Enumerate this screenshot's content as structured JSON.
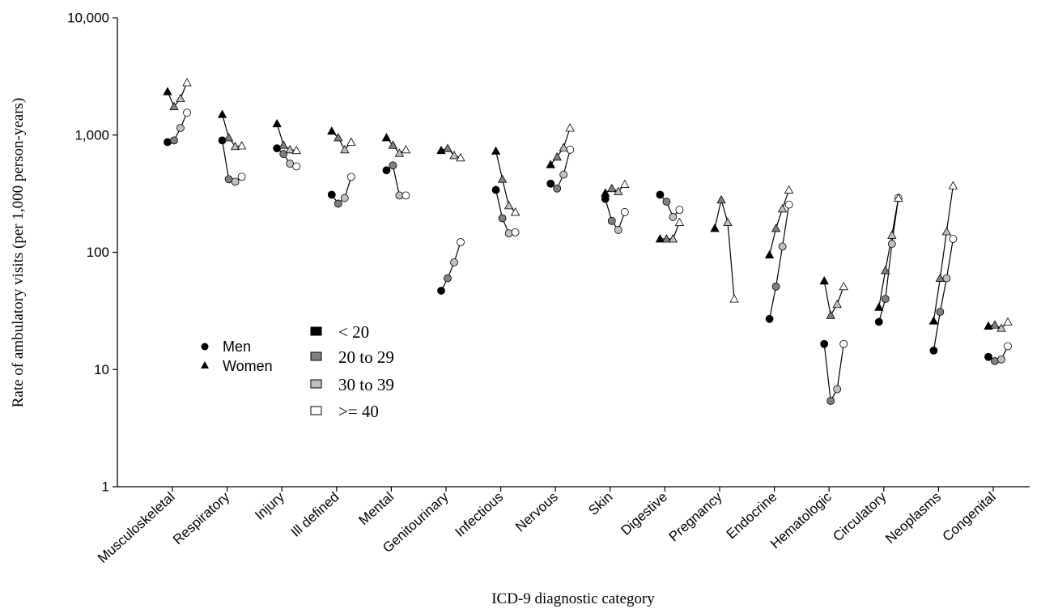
{
  "chart_data": {
    "type": "scatter",
    "title": "",
    "xlabel": "ICD-9 diagnostic category",
    "ylabel": "Rate of ambulatory visits (per 1,000 person-years)",
    "yscale": "log",
    "ylim": [
      1,
      10000
    ],
    "ytick_values": [
      1,
      10,
      100,
      1000,
      10000
    ],
    "ytick_labels": [
      "1",
      "10",
      "100",
      "1,000",
      "10,000"
    ],
    "grid": false,
    "categories": [
      "Musculoskeletal",
      "Respiratory",
      "Injury",
      "Ill defined",
      "Mental",
      "Genitourinary",
      "Infectious",
      "Nervous",
      "Skin",
      "Digestive",
      "Pregnancy",
      "Endocrine",
      "Hematologic",
      "Circulatory",
      "Neoplasms",
      "Congenital"
    ],
    "age_groups": [
      "< 20",
      "20 to 29",
      "30 to 39",
      ">= 40"
    ],
    "age_colors": [
      "#000000",
      "#808080",
      "#c0c0c0",
      "#ffffff"
    ],
    "legend_sex": [
      {
        "marker": "circle",
        "label": "Men"
      },
      {
        "marker": "triangle",
        "label": "Women"
      }
    ],
    "legend_age": [
      "< 20",
      "20 to 29",
      "30 to 39",
      ">= 40"
    ],
    "legend_position": "lower-left, inside plot",
    "series": [
      {
        "name": "Men",
        "marker": "circle",
        "values": [
          [
            870,
            900,
            1150,
            1550
          ],
          [
            900,
            420,
            400,
            440
          ],
          [
            770,
            690,
            570,
            540
          ],
          [
            310,
            260,
            290,
            440
          ],
          [
            500,
            550,
            305,
            305
          ],
          [
            47,
            60,
            82,
            122
          ],
          [
            340,
            195,
            145,
            148
          ],
          [
            385,
            350,
            460,
            750
          ],
          [
            285,
            185,
            155,
            220
          ],
          [
            310,
            270,
            200,
            230
          ],
          [
            null,
            null,
            null,
            null
          ],
          [
            27,
            51,
            112,
            255
          ],
          [
            16.5,
            5.4,
            6.8,
            16.5
          ],
          [
            25.5,
            40,
            118,
            290
          ],
          [
            14.5,
            31,
            60,
            130
          ],
          [
            12.8,
            11.8,
            12.2,
            15.8
          ]
        ]
      },
      {
        "name": "Women",
        "marker": "triangle",
        "values": [
          [
            2350,
            1750,
            2050,
            2800
          ],
          [
            1500,
            950,
            800,
            810
          ],
          [
            1250,
            820,
            750,
            740
          ],
          [
            1080,
            950,
            750,
            870
          ],
          [
            950,
            820,
            700,
            750
          ],
          [
            740,
            770,
            670,
            640
          ],
          [
            730,
            420,
            250,
            220
          ],
          [
            560,
            650,
            780,
            1150
          ],
          [
            320,
            350,
            330,
            380
          ],
          [
            130,
            130,
            130,
            180
          ],
          [
            160,
            280,
            180,
            40
          ],
          [
            95,
            160,
            235,
            340
          ],
          [
            57,
            29,
            36,
            51
          ],
          [
            34,
            70,
            140,
            290
          ],
          [
            26,
            60,
            150,
            370
          ],
          [
            23.5,
            24,
            22.5,
            25.5
          ]
        ]
      }
    ]
  }
}
